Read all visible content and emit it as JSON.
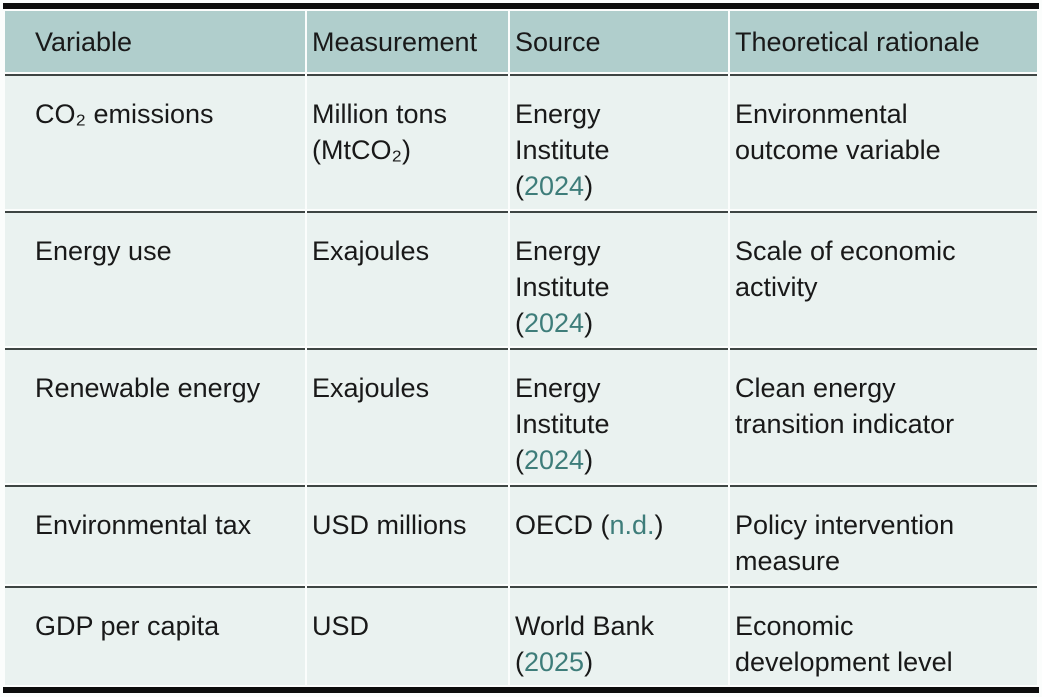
{
  "colors": {
    "header_bg": "#b0cecc",
    "row_bg": "#eaf2f0",
    "divider": "#3e4543",
    "rule": "#0d0d0d",
    "text": "#191919",
    "link": "#3e7d7a",
    "page_bg": "#fbfdfc"
  },
  "table": {
    "columns": [
      "Variable",
      "Measurement",
      "Source",
      "Theoretical rationale"
    ],
    "rows": [
      {
        "variable": "CO₂ emissions",
        "measurement": "Million tons\n(MtCO₂)",
        "source": {
          "pre": "Energy\nInstitute\n(",
          "link": "2024",
          "post": ")"
        },
        "rationale": "Environmental\noutcome variable"
      },
      {
        "variable": "Energy use",
        "measurement": "Exajoules",
        "source": {
          "pre": "Energy\nInstitute\n(",
          "link": "2024",
          "post": ")"
        },
        "rationale": "Scale of economic\nactivity"
      },
      {
        "variable": "Renewable energy",
        "measurement": "Exajoules",
        "source": {
          "pre": "Energy\nInstitute\n(",
          "link": "2024",
          "post": ")"
        },
        "rationale": "Clean energy\ntransition indicator"
      },
      {
        "variable": "Environmental tax",
        "measurement": "USD millions",
        "source": {
          "pre": "OECD (",
          "link": "n.d.",
          "post": ")"
        },
        "rationale": "Policy intervention\nmeasure"
      },
      {
        "variable": "GDP per capita",
        "measurement": "USD",
        "source": {
          "pre": "World Bank\n(",
          "link": "2025",
          "post": ")"
        },
        "rationale": "Economic\ndevelopment level"
      }
    ]
  }
}
